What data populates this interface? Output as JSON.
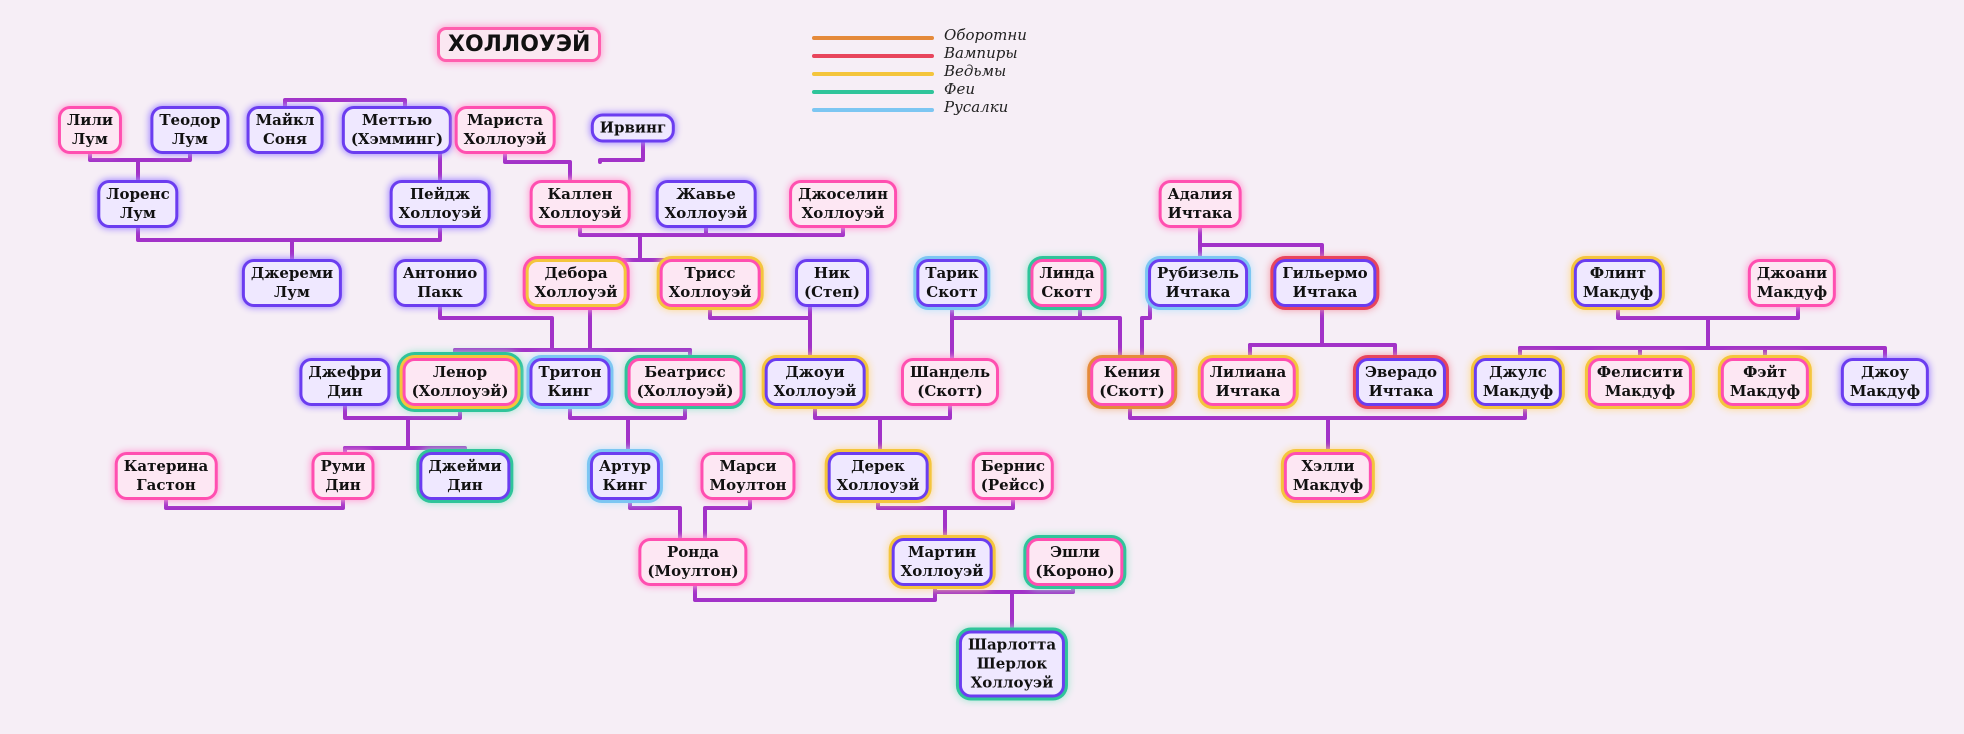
{
  "title": "ХОЛЛОУЭЙ",
  "legend": [
    {
      "label": "Оборотни",
      "color": "#e58a3a"
    },
    {
      "label": "Вампиры",
      "color": "#e8455c"
    },
    {
      "label": "Ведьмы",
      "color": "#f4c53c"
    },
    {
      "label": "Феи",
      "color": "#2fc49a"
    },
    {
      "label": "Русалки",
      "color": "#7cc6f2"
    }
  ],
  "colors": {
    "line": "#a232c8",
    "pink_border": "#ff4fb0",
    "purple_border": "#6b3df0",
    "background": "#f6eef6"
  },
  "people": {
    "lili": [
      "Лили",
      "Лум"
    ],
    "teodor": [
      "Теодор",
      "Лум"
    ],
    "maykl": [
      "Майкл",
      "Соня"
    ],
    "mettyu": [
      "Меттью",
      "(Хэмминг)"
    ],
    "marista": [
      "Мариста",
      "Холлоуэй"
    ],
    "irving": [
      "Ирвинг"
    ],
    "lorens": [
      "Лоренс",
      "Лум"
    ],
    "peydzh": [
      "Пейдж",
      "Холлоуэй"
    ],
    "kallen": [
      "Каллен",
      "Холлоуэй"
    ],
    "zhave": [
      "Жавье",
      "Холлоуэй"
    ],
    "dzhoselin": [
      "Джоселин",
      "Холлоуэй"
    ],
    "adaliya": [
      "Адалия",
      "Ичтака"
    ],
    "dzheremi": [
      "Джереми",
      "Лум"
    ],
    "antonio": [
      "Антонио",
      "Пакк"
    ],
    "debora": [
      "Дебора",
      "Холлоуэй"
    ],
    "triss": [
      "Трисс",
      "Холлоуэй"
    ],
    "nik": [
      "Ник",
      "(Степ)"
    ],
    "tarik": [
      "Тарик",
      "Скотт"
    ],
    "linda": [
      "Линда",
      "Скотт"
    ],
    "rubizel": [
      "Рубизель",
      "Ичтака"
    ],
    "gilermo": [
      "Гильермо",
      "Ичтака"
    ],
    "flint": [
      "Флинт",
      "Макдуф"
    ],
    "dzhoani": [
      "Джоани",
      "Макдуф"
    ],
    "dzhefri": [
      "Джефри",
      "Дин"
    ],
    "lenor": [
      "Ленор",
      "(Холлоуэй)"
    ],
    "triton": [
      "Тритон",
      "Кинг"
    ],
    "beatriss": [
      "Беатрисс",
      "(Холлоуэй)"
    ],
    "dzhoui": [
      "Джоуи",
      "Холлоуэй"
    ],
    "shandel": [
      "Шандель",
      "(Скотт)"
    ],
    "keniya": [
      "Кения",
      "(Скотт)"
    ],
    "liliana": [
      "Лилиана",
      "Ичтака"
    ],
    "everado": [
      "Эверадо",
      "Ичтака"
    ],
    "dzhuls": [
      "Джулс",
      "Макдуф"
    ],
    "felisiti": [
      "Фелисити",
      "Макдуф"
    ],
    "feyt": [
      "Фэйт",
      "Макдуф"
    ],
    "dzhou": [
      "Джоу",
      "Макдуф"
    ],
    "katerina": [
      "Катерина",
      "Гастон"
    ],
    "rumi": [
      "Руми",
      "Дин"
    ],
    "dzheymi": [
      "Джейми",
      "Дин"
    ],
    "artur": [
      "Артур",
      "Кинг"
    ],
    "marsi": [
      "Марси",
      "Моултон"
    ],
    "derek": [
      "Дерек",
      "Холлоуэй"
    ],
    "bernis": [
      "Бернис",
      "(Рейсс)"
    ],
    "helli": [
      "Хэлли",
      "Макдуф"
    ],
    "ronda": [
      "Ронда",
      "(Моултон)"
    ],
    "martin": [
      "Мартин",
      "Холлоуэй"
    ],
    "eshli": [
      "Эшли",
      "(Короно)"
    ],
    "sharlotta": [
      "Шарлотта",
      "Шерлок",
      "Холлоуэй"
    ]
  }
}
